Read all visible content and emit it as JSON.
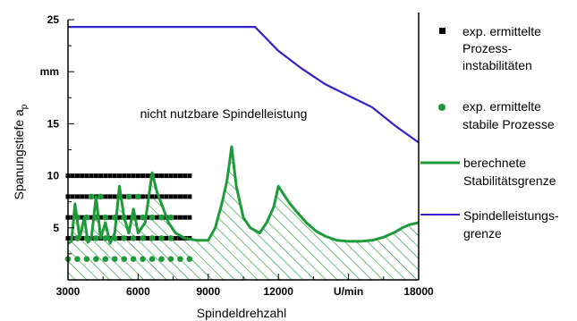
{
  "chart_data": {
    "type": "line",
    "xlabel": "Spindeldrehzahl",
    "ylabel_main": "Spanungstiefe a",
    "ylabel_sub": "p",
    "xlim": [
      3000,
      18000
    ],
    "ylim": [
      0,
      25
    ],
    "x_tick_labels": [
      "3000",
      "6000",
      "9000",
      "12000",
      "U/min",
      "18000"
    ],
    "y_tick_labels": [
      "25",
      "mm",
      "15",
      "10",
      "5"
    ],
    "annotation": "nicht nutzbare Spindelleistung",
    "colors": {
      "stability": "#1e9a3a",
      "spindle": "#3322cc",
      "unstable": "#000000",
      "stable": "#1e9a3a"
    },
    "series": [
      {
        "name": "Spindelleistungsgrenze",
        "kind": "line",
        "x": [
          3000,
          11000,
          12000,
          13000,
          14000,
          15000,
          16000,
          17000,
          18000
        ],
        "y": [
          24.3,
          24.3,
          22.0,
          20.3,
          18.8,
          17.7,
          16.6,
          14.8,
          13.2
        ]
      },
      {
        "name": "berechnete Stabilitätsgrenze",
        "kind": "line",
        "x": [
          3000,
          3150,
          3300,
          3500,
          3700,
          3850,
          4000,
          4200,
          4400,
          4600,
          4800,
          5000,
          5200,
          5400,
          5600,
          5800,
          6000,
          6300,
          6600,
          6800,
          7000,
          7300,
          7600,
          8000,
          8500,
          9000,
          9300,
          9600,
          9800,
          10000,
          10200,
          10500,
          10800,
          11200,
          11500,
          11800,
          12000,
          12200,
          12500,
          12800,
          13200,
          13600,
          14000,
          14500,
          15000,
          15500,
          16000,
          16500,
          17000,
          17300,
          17600,
          18000
        ],
        "y": [
          3.5,
          3.7,
          7.3,
          4.0,
          6.0,
          3.6,
          4.0,
          8.0,
          4.0,
          5.5,
          3.5,
          4.5,
          9.0,
          6.0,
          4.5,
          6.8,
          4.5,
          5.5,
          10.3,
          8.5,
          7.3,
          5.5,
          4.5,
          4.0,
          3.8,
          3.8,
          5.0,
          7.5,
          9.5,
          12.8,
          9.0,
          6.0,
          5.0,
          4.5,
          5.5,
          7.0,
          9.0,
          8.3,
          7.3,
          6.5,
          5.5,
          4.7,
          4.2,
          3.8,
          3.7,
          3.7,
          3.8,
          4.1,
          4.6,
          5.0,
          5.3,
          5.5
        ]
      },
      {
        "name": "exp. ermittelte Prozess-instabilitäten",
        "kind": "markers",
        "levels": [
          10,
          8,
          6,
          4
        ],
        "x_start": 3000,
        "x_end": 8200,
        "x_step": 200
      },
      {
        "name": "exp. ermittelte stabile Prozesse",
        "kind": "markers",
        "points": {
          "8": [
            4000,
            4400,
            5200,
            5600,
            6000
          ],
          "6": [
            3400,
            3800,
            4200,
            4600,
            5000,
            5400,
            5800,
            6200,
            6600,
            7000,
            7400
          ],
          "4": [
            3400,
            3800,
            4200,
            4600,
            5000,
            5400,
            5800,
            6200,
            6600,
            7000,
            7400
          ],
          "2": [
            3000,
            3400,
            3800,
            4200,
            4600,
            5000,
            5400,
            5800,
            6200,
            6600,
            7000,
            7400,
            7800,
            8200
          ]
        }
      }
    ],
    "legend": {
      "position": "right",
      "items": [
        {
          "lines": [
            "exp. ermittelte",
            "Prozess-",
            "instabilitäten"
          ]
        },
        {
          "lines": [
            "exp. ermittelte",
            "stabile Prozesse"
          ]
        },
        {
          "lines": [
            "berechnete",
            "Stabilitätsgrenze"
          ]
        },
        {
          "lines": [
            "Spindelleistungs-",
            "grenze"
          ]
        }
      ]
    }
  }
}
